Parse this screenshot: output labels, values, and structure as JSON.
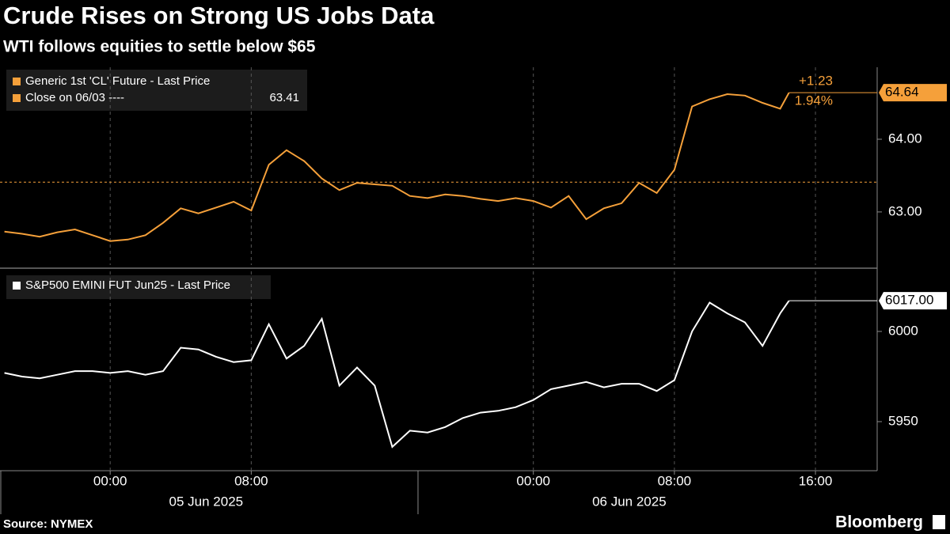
{
  "title": "Crude Rises on Strong US Jobs Data",
  "subtitle": "WTI follows equities to settle below $65",
  "source": "Source: NYMEX",
  "brand": "Bloomberg",
  "chart_data": [
    {
      "type": "line",
      "x": [
        "2025-06-04T18:00",
        "2025-06-04T19:00",
        "2025-06-04T20:00",
        "2025-06-04T21:00",
        "2025-06-04T22:00",
        "2025-06-04T23:00",
        "2025-06-05T00:00",
        "2025-06-05T01:00",
        "2025-06-05T02:00",
        "2025-06-05T03:00",
        "2025-06-05T04:00",
        "2025-06-05T05:00",
        "2025-06-05T06:00",
        "2025-06-05T07:00",
        "2025-06-05T08:00",
        "2025-06-05T09:00",
        "2025-06-05T10:00",
        "2025-06-05T11:00",
        "2025-06-05T12:00",
        "2025-06-05T13:00",
        "2025-06-05T14:00",
        "2025-06-05T15:00",
        "2025-06-05T16:00",
        "2025-06-05T17:00",
        "2025-06-05T18:00",
        "2025-06-05T19:00",
        "2025-06-05T20:00",
        "2025-06-05T21:00",
        "2025-06-05T22:00",
        "2025-06-05T23:00",
        "2025-06-06T00:00",
        "2025-06-06T01:00",
        "2025-06-06T02:00",
        "2025-06-06T03:00",
        "2025-06-06T04:00",
        "2025-06-06T05:00",
        "2025-06-06T06:00",
        "2025-06-06T07:00",
        "2025-06-06T08:00",
        "2025-06-06T09:00",
        "2025-06-06T10:00",
        "2025-06-06T11:00",
        "2025-06-06T12:00",
        "2025-06-06T13:00",
        "2025-06-06T14:00",
        "2025-06-06T14:30"
      ],
      "series": [
        {
          "name": "Generic 1st 'CL' Future - Last Price",
          "color": "#f5a03a",
          "values": [
            62.73,
            62.7,
            62.66,
            62.72,
            62.76,
            62.68,
            62.6,
            62.62,
            62.68,
            62.85,
            63.05,
            62.98,
            63.06,
            63.14,
            63.02,
            63.65,
            63.85,
            63.7,
            63.46,
            63.3,
            63.4,
            63.38,
            63.36,
            63.22,
            63.19,
            63.24,
            63.22,
            63.18,
            63.15,
            63.19,
            63.15,
            63.06,
            63.22,
            62.9,
            63.05,
            63.12,
            63.4,
            63.26,
            63.58,
            64.45,
            64.55,
            64.62,
            64.6,
            64.5,
            64.42,
            64.64
          ]
        }
      ],
      "reference_line": {
        "label": "Close on 06/03 ----",
        "value": 63.41,
        "color": "#f5a03a"
      },
      "annotations": [
        "+1.23",
        "1.94%"
      ],
      "xlim": [
        "2025-06-04T17:45",
        "2025-06-06T19:30"
      ],
      "ylim": [
        62.27,
        64.99
      ],
      "yticks": [
        {
          "value": 63,
          "label": "63.00"
        },
        {
          "value": 64,
          "label": "64.00"
        }
      ]
    },
    {
      "type": "line",
      "x": [
        "2025-06-04T18:00",
        "2025-06-04T19:00",
        "2025-06-04T20:00",
        "2025-06-04T21:00",
        "2025-06-04T22:00",
        "2025-06-04T23:00",
        "2025-06-05T00:00",
        "2025-06-05T01:00",
        "2025-06-05T02:00",
        "2025-06-05T03:00",
        "2025-06-05T04:00",
        "2025-06-05T05:00",
        "2025-06-05T06:00",
        "2025-06-05T07:00",
        "2025-06-05T08:00",
        "2025-06-05T09:00",
        "2025-06-05T10:00",
        "2025-06-05T11:00",
        "2025-06-05T12:00",
        "2025-06-05T13:00",
        "2025-06-05T14:00",
        "2025-06-05T15:00",
        "2025-06-05T16:00",
        "2025-06-05T17:00",
        "2025-06-05T18:00",
        "2025-06-05T19:00",
        "2025-06-05T20:00",
        "2025-06-05T21:00",
        "2025-06-05T22:00",
        "2025-06-05T23:00",
        "2025-06-06T00:00",
        "2025-06-06T01:00",
        "2025-06-06T02:00",
        "2025-06-06T03:00",
        "2025-06-06T04:00",
        "2025-06-06T05:00",
        "2025-06-06T06:00",
        "2025-06-06T07:00",
        "2025-06-06T08:00",
        "2025-06-06T09:00",
        "2025-06-06T10:00",
        "2025-06-06T11:00",
        "2025-06-06T12:00",
        "2025-06-06T13:00",
        "2025-06-06T14:00",
        "2025-06-06T14:30"
      ],
      "series": [
        {
          "name": "S&P500 EMINI FUT Jun25 - Last Price",
          "color": "#ffffff",
          "values": [
            5977,
            5975,
            5974,
            5976,
            5978,
            5978,
            5977,
            5978,
            5976,
            5978,
            5991,
            5990,
            5986,
            5983,
            5984,
            6004,
            5985,
            5992,
            6007,
            5970,
            5980,
            5970,
            5936,
            5945,
            5944,
            5947,
            5952,
            5955,
            5956,
            5958,
            5962,
            5968,
            5970,
            5972,
            5969,
            5971,
            5971,
            5967,
            5973,
            6000,
            6016,
            6010,
            6005,
            5992,
            6010,
            6017
          ],
          "value_labels": [
            null,
            null,
            null,
            null,
            null,
            null,
            null,
            null,
            null,
            null,
            null,
            null,
            null,
            null,
            null,
            null,
            null,
            null,
            null,
            null,
            null,
            null,
            null,
            null,
            null,
            null,
            null,
            null,
            null,
            null,
            null,
            null,
            null,
            null,
            null,
            null,
            null,
            null,
            null,
            null,
            null,
            null,
            null,
            null,
            null,
            "6017.00"
          ]
        }
      ],
      "xlim": [
        "2025-06-04T17:45",
        "2025-06-06T19:30"
      ],
      "ylim": [
        5922.8,
        6033.3
      ],
      "yticks": [
        5950,
        6000
      ],
      "xticks": [
        {
          "value": "2025-06-05T00:00",
          "label": "00:00"
        },
        {
          "value": "2025-06-05T08:00",
          "label": "08:00"
        },
        {
          "value": "2025-06-06T00:00",
          "label": "00:00"
        },
        {
          "value": "2025-06-06T08:00",
          "label": "08:00"
        },
        {
          "value": "2025-06-06T16:00",
          "label": "16:00"
        }
      ],
      "dates": [
        "05 Jun 2025",
        "06 Jun 2025"
      ]
    }
  ]
}
